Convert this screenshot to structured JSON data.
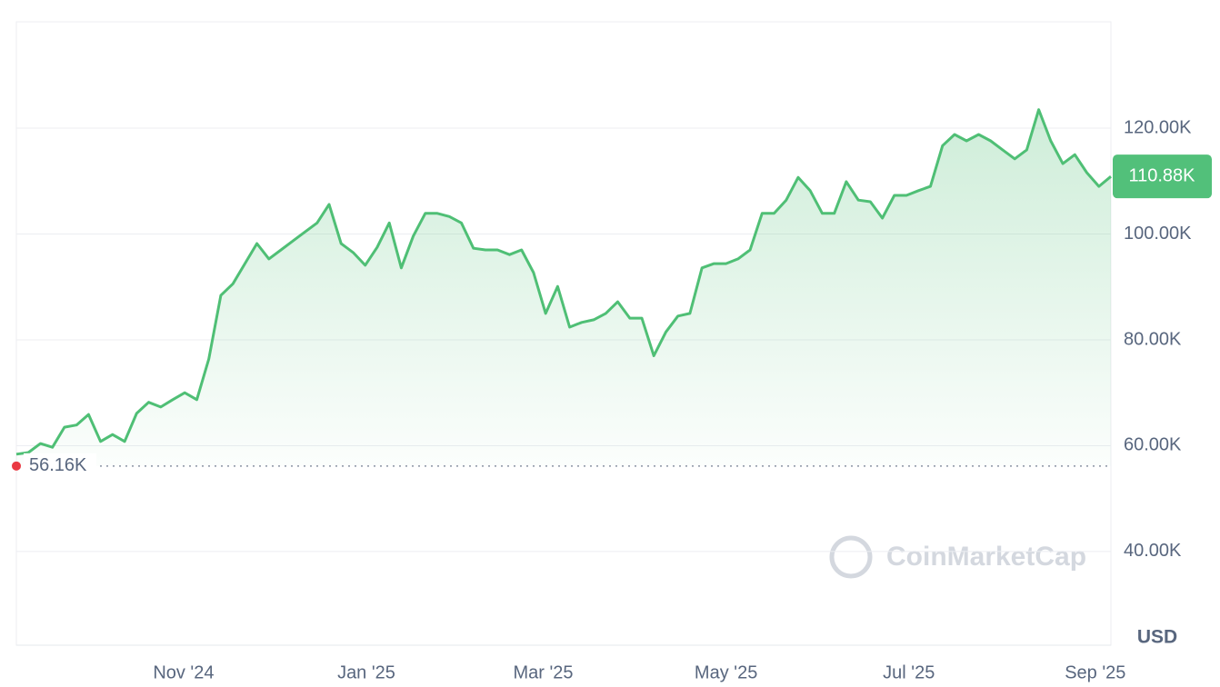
{
  "chart_data": {
    "type": "line",
    "color": "#4fbf75",
    "values": [
      58400,
      58700,
      60400,
      59700,
      63500,
      63900,
      65900,
      60800,
      62100,
      60800,
      66100,
      68200,
      67300,
      68700,
      70000,
      68700,
      76400,
      88400,
      90600,
      94400,
      98200,
      95300,
      97000,
      98700,
      100400,
      102100,
      105600,
      98200,
      96500,
      94100,
      97500,
      102100,
      93600,
      99600,
      103900,
      103900,
      103300,
      102100,
      97300,
      97000,
      97000,
      96100,
      97000,
      92700,
      85000,
      90100,
      82400,
      83300,
      83800,
      85000,
      87200,
      84100,
      84100,
      77000,
      81500,
      84500,
      85000,
      93600,
      94400,
      94400,
      95300,
      97000,
      103900,
      103900,
      106400,
      110700,
      108200,
      103900,
      103900,
      109900,
      106400,
      106100,
      103000,
      107300,
      107300,
      108200,
      109000,
      116700,
      118800,
      117600,
      118800,
      117600,
      115900,
      114200,
      115900,
      123500,
      117600,
      113300,
      115000,
      111600,
      109000,
      110880
    ],
    "xlim": [
      0,
      91
    ],
    "xticks": [
      {
        "value": 13.9,
        "label": "Nov '24"
      },
      {
        "value": 29.1,
        "label": "Jan '25"
      },
      {
        "value": 43.8,
        "label": "Mar '25"
      },
      {
        "value": 59.0,
        "label": "May '25"
      },
      {
        "value": 74.2,
        "label": "Jul '25"
      },
      {
        "value": 89.7,
        "label": "Sep '25"
      }
    ],
    "ylim": [
      22300,
      140100
    ],
    "yticks": [
      {
        "value": 40000,
        "label": "40.00K"
      },
      {
        "value": 60000,
        "label": "60.00K"
      },
      {
        "value": 80000,
        "label": "80.00K"
      },
      {
        "value": 100000,
        "label": "100.00K"
      },
      {
        "value": 120000,
        "label": "120.00K"
      }
    ],
    "grid": true,
    "current_price": {
      "value": 110880,
      "label": "110.88K"
    },
    "reference_line": {
      "value": 56160,
      "label": "56.16K"
    },
    "unit": "USD",
    "watermark": "CoinMarketCap"
  }
}
